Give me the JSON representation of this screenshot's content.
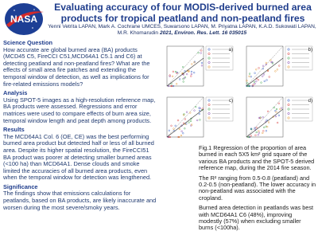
{
  "header": {
    "title": "Evaluating accuracy of four MODIS-derived burned area products for tropical peatland and non-peatland fires",
    "authors": "Yenni Vetrita LAPAN, Mark A. Cochrane UMCES, Suwarsono LAPAN, M. Priyatna LAPAN, K.A.D. Sukowati LAPAN, M.R. Khomarudin",
    "citation": "2021, Environ. Res. Lett. 16 035015",
    "logo": "NASA"
  },
  "sections": [
    {
      "heading": "Science Question",
      "text": "How accurate are global burned area (BA) products (MCD45 C5, FireCCI C51,MCD64A1 C5.1 and C6) at detecting peatland and non-peatland fires? What are the effects of small area fire patches and extending the temporal window of detection, as well as implications for fire-related emissions models?"
    },
    {
      "heading": "Analysis",
      "text": "Using SPOT-5 images as a high-resolution reference map, BA products were assessed. Regressions and error matrices were used to compare effects of burn area size, temporal window length and peat  depth among products."
    },
    {
      "heading": "Results",
      "text": "The MCD64A1 Col. 6 (OE, CE) was the best performing burned area product but detected half or less of all burned area. Despite its higher spatial resolution, the FireCCI51 BA product was poorer at detecting smaller burned areas (<100 ha) than MCD64A1. Dense clouds and smoke limited the accuracies of all burned area products, even when the temporal window for detection was lengthened."
    },
    {
      "heading": "Significance",
      "text": "The findings show that emissions calculations for peatlands, based on BA products, are likely inaccurate and worsen during the most severe/smoky years."
    }
  ],
  "figure": {
    "panels": [
      "a)",
      "b)",
      "c)",
      "d)"
    ],
    "caption": [
      "Fig.1 Regression of the proportion of area burned in each 5X5 km² grid square of the various BA products and the SPOT-5 derived reference map, during the 2014 fire season.",
      "The R² ranging from 0.5-0.8 (peatland) and 0.2-0.5 (non-peatland). The lower accuracy in non-peatland was associated with the cropland.",
      "Burned area detection in peatlands was best with MCD64A1  C6 (48%), improving modestly (57%) when excluding smaller burns (<100ha)."
    ]
  }
}
